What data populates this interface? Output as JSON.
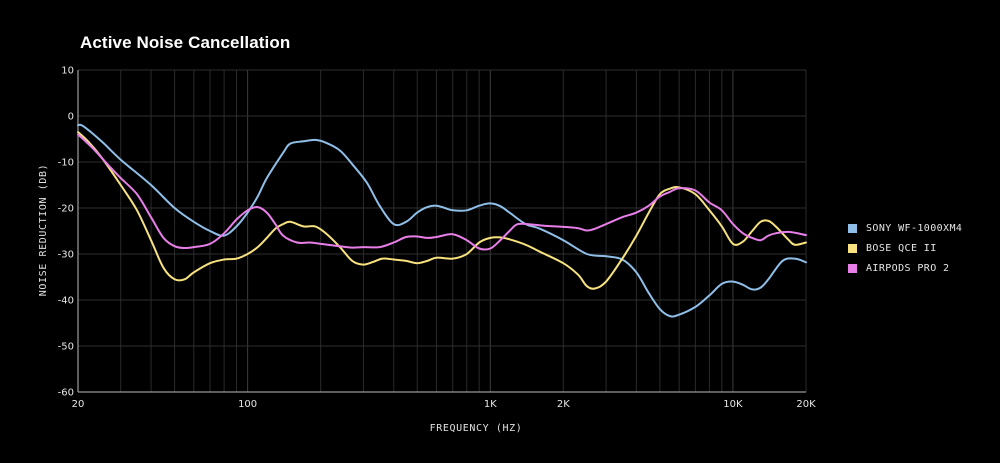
{
  "chart_data": {
    "type": "line",
    "title": "Active Noise Cancellation",
    "xlabel": "FREQUENCY (HZ)",
    "ylabel": "NOISE REDUCTION (DB)",
    "x_scale": "log",
    "xlim": [
      20,
      20000
    ],
    "ylim": [
      -60,
      10
    ],
    "grid": true,
    "legend_position": "right",
    "x_ticks": [
      {
        "value": 20,
        "label": "20"
      },
      {
        "value": 100,
        "label": "100"
      },
      {
        "value": 1000,
        "label": "1K"
      },
      {
        "value": 2000,
        "label": "2K"
      },
      {
        "value": 10000,
        "label": "10K"
      },
      {
        "value": 20000,
        "label": "20K"
      }
    ],
    "y_ticks": [
      {
        "value": 10,
        "label": "10"
      },
      {
        "value": 0,
        "label": "0"
      },
      {
        "value": -10,
        "label": "-10"
      },
      {
        "value": -20,
        "label": "-20"
      },
      {
        "value": -30,
        "label": "-30"
      },
      {
        "value": -40,
        "label": "-40"
      },
      {
        "value": -50,
        "label": "-50"
      },
      {
        "value": -60,
        "label": "-60"
      }
    ],
    "series": [
      {
        "name": "SONY WF-1000XM4",
        "color": "#8fbfe8",
        "points": [
          [
            20,
            -2
          ],
          [
            21,
            -2.2
          ],
          [
            25,
            -5.5
          ],
          [
            30,
            -9.5
          ],
          [
            40,
            -15
          ],
          [
            50,
            -20
          ],
          [
            60,
            -23
          ],
          [
            70,
            -25
          ],
          [
            80,
            -26
          ],
          [
            90,
            -24
          ],
          [
            100,
            -21
          ],
          [
            110,
            -17.5
          ],
          [
            120,
            -13.5
          ],
          [
            140,
            -8
          ],
          [
            150,
            -6
          ],
          [
            170,
            -5.5
          ],
          [
            190,
            -5.2
          ],
          [
            210,
            -5.8
          ],
          [
            240,
            -7.5
          ],
          [
            270,
            -10.5
          ],
          [
            310,
            -14.5
          ],
          [
            350,
            -19.5
          ],
          [
            400,
            -23.5
          ],
          [
            450,
            -23
          ],
          [
            500,
            -21
          ],
          [
            550,
            -19.8
          ],
          [
            600,
            -19.5
          ],
          [
            650,
            -20
          ],
          [
            700,
            -20.5
          ],
          [
            800,
            -20.5
          ],
          [
            900,
            -19.5
          ],
          [
            1000,
            -19
          ],
          [
            1100,
            -19.6
          ],
          [
            1200,
            -21
          ],
          [
            1400,
            -23.5
          ],
          [
            1600,
            -24.5
          ],
          [
            2000,
            -27
          ],
          [
            2500,
            -30
          ],
          [
            3000,
            -30.5
          ],
          [
            3500,
            -31.2
          ],
          [
            4000,
            -34
          ],
          [
            4500,
            -38.5
          ],
          [
            5000,
            -42
          ],
          [
            5500,
            -43.5
          ],
          [
            6000,
            -43.2
          ],
          [
            7000,
            -41.5
          ],
          [
            8000,
            -39
          ],
          [
            9000,
            -36.5
          ],
          [
            10000,
            -36
          ],
          [
            11000,
            -36.7
          ],
          [
            12000,
            -37.7
          ],
          [
            13000,
            -37.3
          ],
          [
            14000,
            -35.5
          ],
          [
            16000,
            -31.5
          ],
          [
            18000,
            -31
          ],
          [
            20000,
            -31.8
          ]
        ]
      },
      {
        "name": "BOSE QCE II",
        "color": "#f7e27f",
        "points": [
          [
            20,
            -3.5
          ],
          [
            22,
            -5.5
          ],
          [
            25,
            -9
          ],
          [
            30,
            -15
          ],
          [
            35,
            -20.5
          ],
          [
            40,
            -27
          ],
          [
            45,
            -33
          ],
          [
            50,
            -35.5
          ],
          [
            55,
            -35.5
          ],
          [
            60,
            -34
          ],
          [
            70,
            -32
          ],
          [
            80,
            -31.2
          ],
          [
            90,
            -31
          ],
          [
            100,
            -30
          ],
          [
            110,
            -28.5
          ],
          [
            120,
            -26.5
          ],
          [
            130,
            -24.5
          ],
          [
            140,
            -23.5
          ],
          [
            150,
            -23
          ],
          [
            170,
            -24
          ],
          [
            190,
            -24
          ],
          [
            210,
            -25.5
          ],
          [
            240,
            -28.5
          ],
          [
            270,
            -31.5
          ],
          [
            300,
            -32.3
          ],
          [
            330,
            -31.7
          ],
          [
            360,
            -31
          ],
          [
            400,
            -31.2
          ],
          [
            450,
            -31.5
          ],
          [
            500,
            -32
          ],
          [
            550,
            -31.5
          ],
          [
            600,
            -30.8
          ],
          [
            700,
            -31
          ],
          [
            800,
            -30
          ],
          [
            900,
            -27.5
          ],
          [
            1000,
            -26.5
          ],
          [
            1100,
            -26.4
          ],
          [
            1200,
            -26.8
          ],
          [
            1400,
            -28
          ],
          [
            1600,
            -29.5
          ],
          [
            2000,
            -32
          ],
          [
            2300,
            -34.5
          ],
          [
            2500,
            -37
          ],
          [
            2700,
            -37.5
          ],
          [
            3000,
            -36
          ],
          [
            3500,
            -31
          ],
          [
            4000,
            -26
          ],
          [
            4500,
            -21
          ],
          [
            5000,
            -17
          ],
          [
            5500,
            -15.8
          ],
          [
            6000,
            -15.5
          ],
          [
            7000,
            -17
          ],
          [
            8000,
            -20.5
          ],
          [
            9000,
            -24
          ],
          [
            10000,
            -27.8
          ],
          [
            11000,
            -27.3
          ],
          [
            12000,
            -25
          ],
          [
            13000,
            -23
          ],
          [
            14000,
            -22.8
          ],
          [
            15000,
            -24
          ],
          [
            17000,
            -27
          ],
          [
            18000,
            -28
          ],
          [
            20000,
            -27.5
          ]
        ]
      },
      {
        "name": "AIRPODS PRO 2",
        "color": "#e87fe8",
        "points": [
          [
            20,
            -4
          ],
          [
            23,
            -7
          ],
          [
            27,
            -11
          ],
          [
            30,
            -13.5
          ],
          [
            35,
            -17
          ],
          [
            40,
            -22
          ],
          [
            45,
            -26.5
          ],
          [
            50,
            -28.3
          ],
          [
            55,
            -28.7
          ],
          [
            60,
            -28.5
          ],
          [
            70,
            -27.8
          ],
          [
            80,
            -25.5
          ],
          [
            90,
            -22.5
          ],
          [
            100,
            -20.5
          ],
          [
            110,
            -19.8
          ],
          [
            120,
            -21
          ],
          [
            130,
            -23.5
          ],
          [
            140,
            -26
          ],
          [
            160,
            -27.5
          ],
          [
            180,
            -27.5
          ],
          [
            200,
            -27.8
          ],
          [
            230,
            -28.2
          ],
          [
            270,
            -28.6
          ],
          [
            300,
            -28.5
          ],
          [
            350,
            -28.5
          ],
          [
            400,
            -27.5
          ],
          [
            450,
            -26.3
          ],
          [
            500,
            -26.2
          ],
          [
            550,
            -26.5
          ],
          [
            600,
            -26.3
          ],
          [
            700,
            -25.7
          ],
          [
            800,
            -27
          ],
          [
            900,
            -28.8
          ],
          [
            1000,
            -28.8
          ],
          [
            1100,
            -27
          ],
          [
            1200,
            -25
          ],
          [
            1300,
            -23.5
          ],
          [
            1500,
            -23.6
          ],
          [
            1700,
            -23.9
          ],
          [
            2000,
            -24.1
          ],
          [
            2300,
            -24.4
          ],
          [
            2500,
            -24.9
          ],
          [
            2700,
            -24.5
          ],
          [
            3000,
            -23.5
          ],
          [
            3500,
            -22
          ],
          [
            4000,
            -21
          ],
          [
            4500,
            -19.5
          ],
          [
            5000,
            -17.5
          ],
          [
            5500,
            -16.5
          ],
          [
            6000,
            -15.7
          ],
          [
            7000,
            -16.2
          ],
          [
            8000,
            -18.8
          ],
          [
            9000,
            -20.5
          ],
          [
            10000,
            -23.5
          ],
          [
            11000,
            -25.5
          ],
          [
            12000,
            -26.5
          ],
          [
            13000,
            -27
          ],
          [
            14000,
            -26
          ],
          [
            15000,
            -25.5
          ],
          [
            17000,
            -25.2
          ],
          [
            20000,
            -25.9
          ]
        ]
      }
    ]
  }
}
